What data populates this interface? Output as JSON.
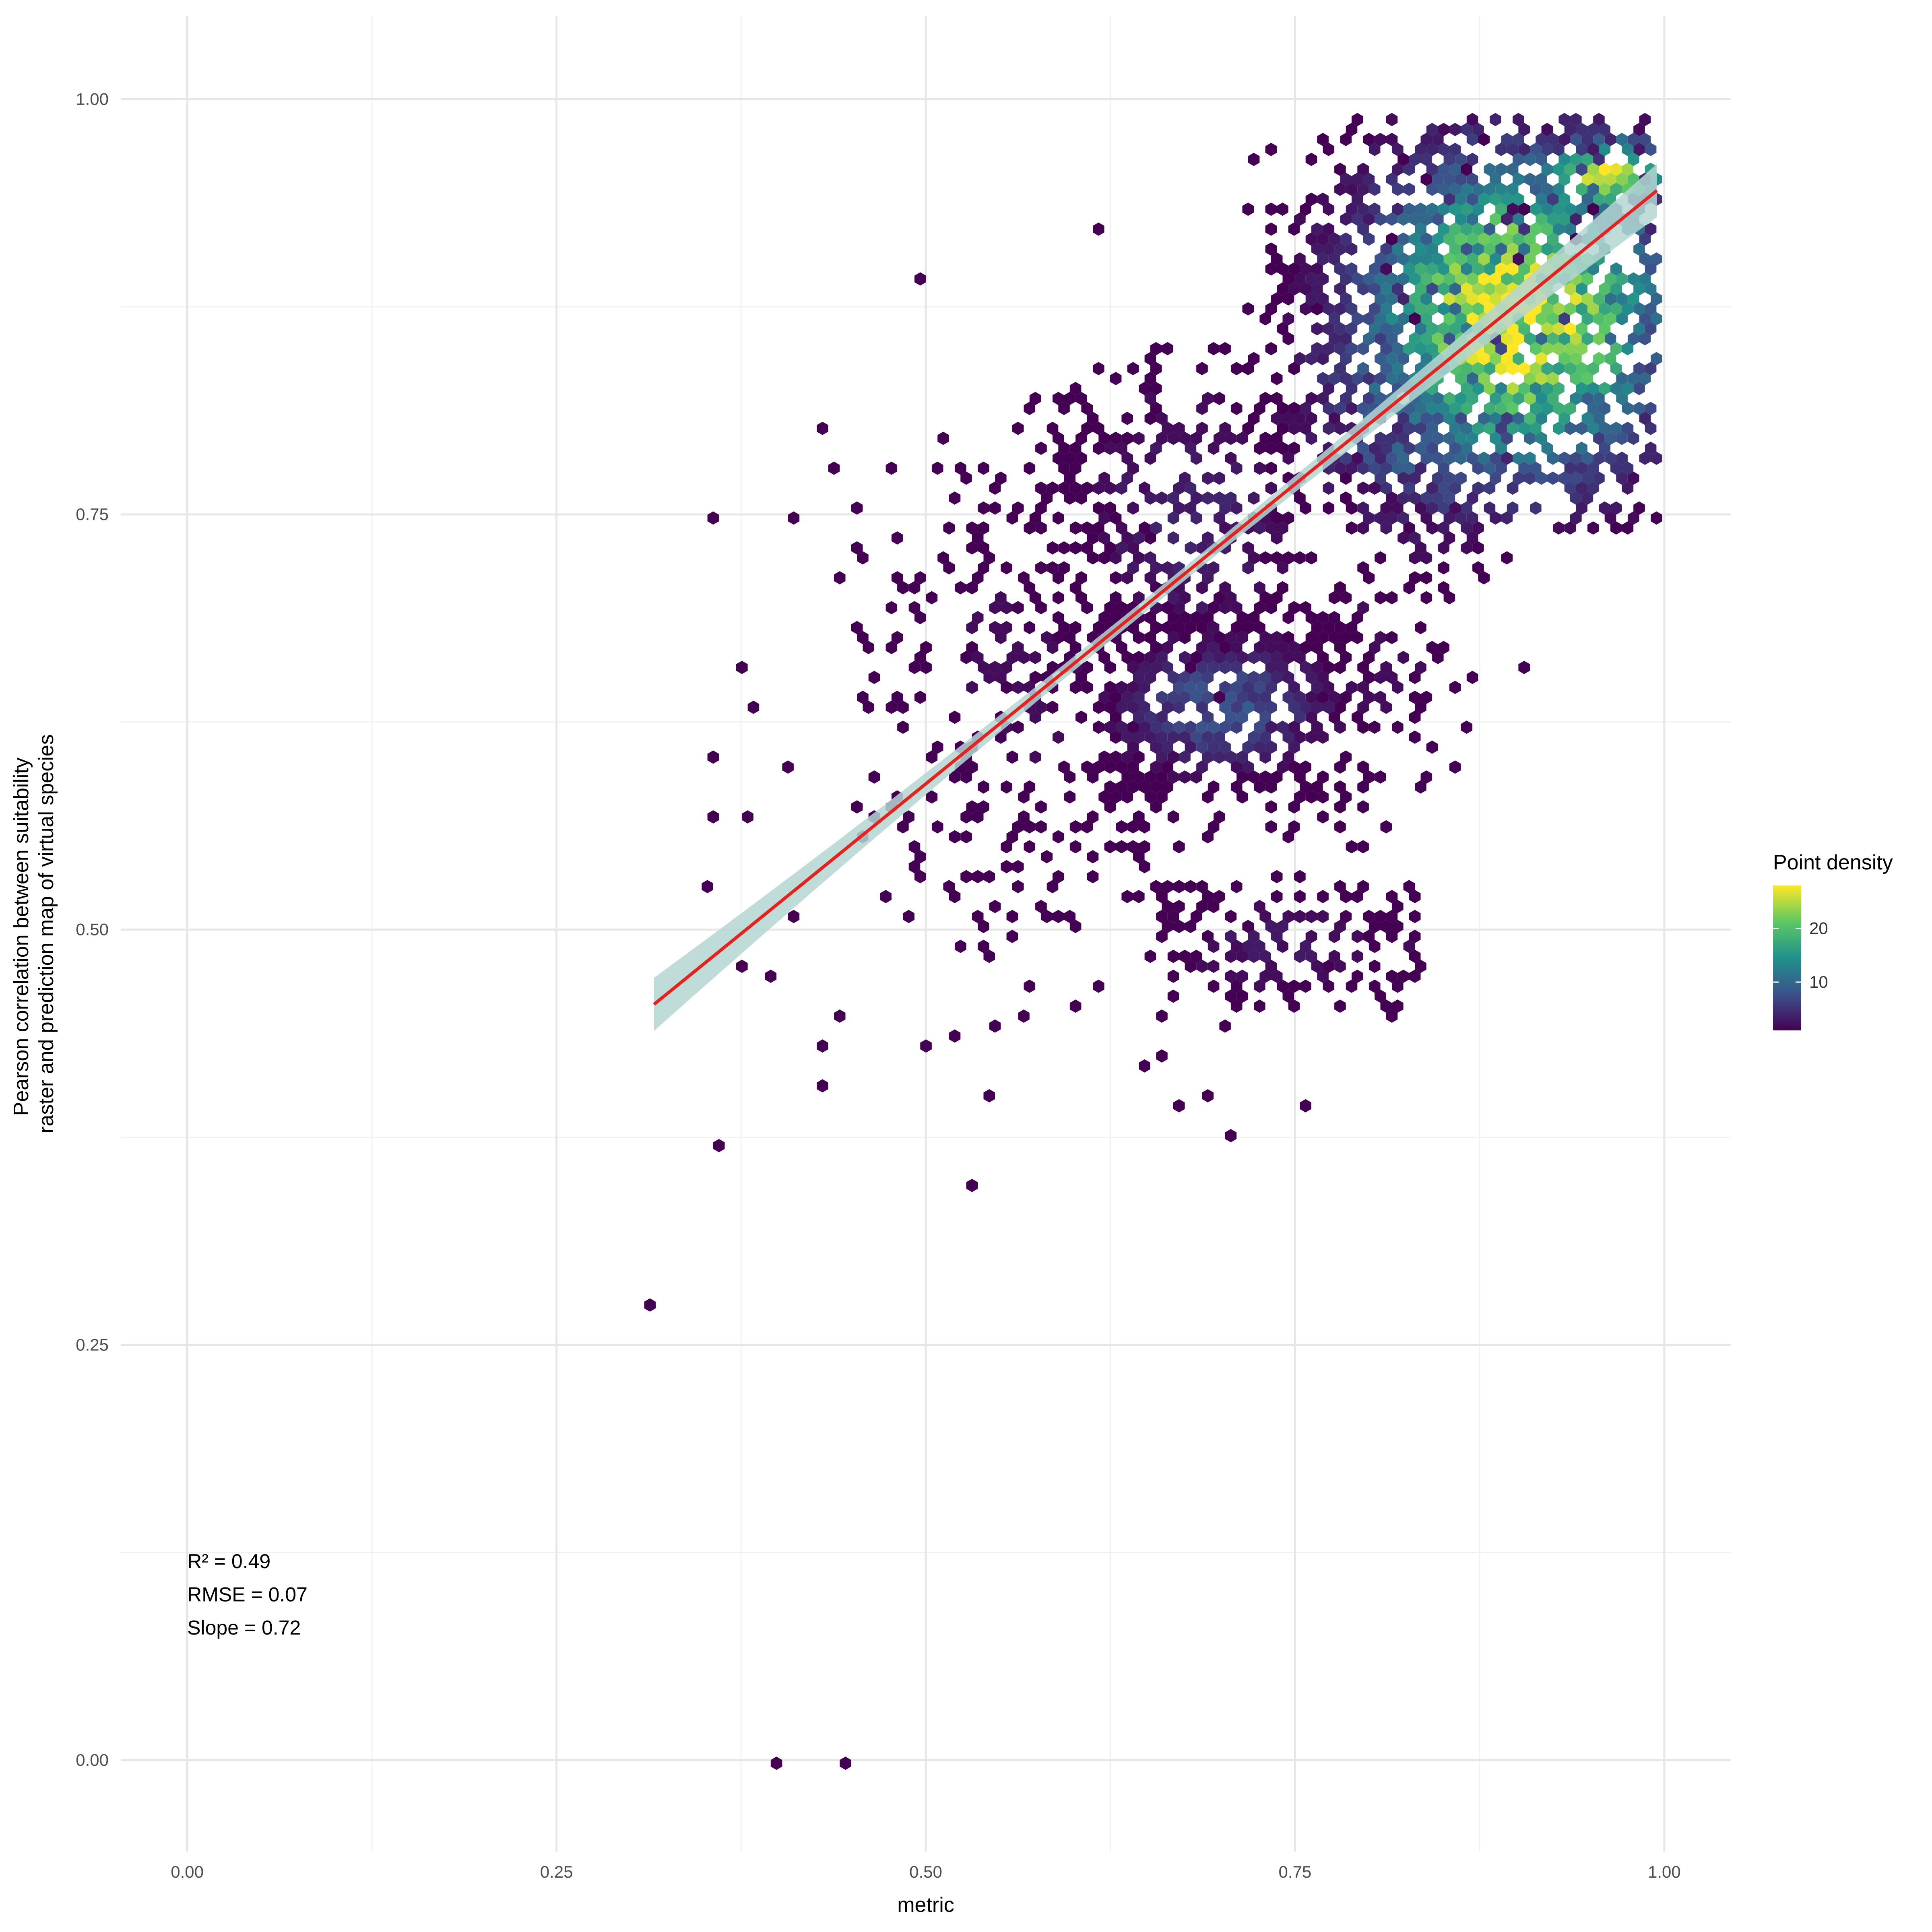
{
  "chart_data": {
    "type": "hexbin scatter with linear fit",
    "xlabel": "metric",
    "ylabel_lines": [
      "Pearson correlation between suitability",
      "raster and prediction map of virtual species"
    ],
    "xlim": [
      -0.045,
      1.045
    ],
    "ylim": [
      -0.055,
      1.05
    ],
    "x_ticks": [
      {
        "value": 0.0,
        "label": "0.00"
      },
      {
        "value": 0.25,
        "label": "0.25"
      },
      {
        "value": 0.5,
        "label": "0.50"
      },
      {
        "value": 0.75,
        "label": "0.75"
      },
      {
        "value": 1.0,
        "label": "1.00"
      }
    ],
    "y_ticks": [
      {
        "value": 0.0,
        "label": "0.00"
      },
      {
        "value": 0.25,
        "label": "0.25"
      },
      {
        "value": 0.5,
        "label": "0.50"
      },
      {
        "value": 0.75,
        "label": "0.75"
      },
      {
        "value": 1.0,
        "label": "1.00"
      }
    ],
    "grid": true,
    "legend": {
      "title": "Point density",
      "position": "right",
      "min": 1,
      "max": 28,
      "ticks": [
        {
          "value": 10,
          "label": "10"
        },
        {
          "value": 20,
          "label": "20"
        }
      ],
      "colors": [
        "#440154",
        "#3b528b",
        "#21908c",
        "#5dc863",
        "#fde725"
      ]
    },
    "fit": {
      "x0": 0.316,
      "y0": 0.455,
      "x1": 0.995,
      "y1": 0.945,
      "color": "#e8211c",
      "ribbon_color": "#b4d6d2"
    },
    "annotations": [
      "R² = 0.49",
      "RMSE = 0.07",
      "Slope = 0.72"
    ],
    "points_outlier": [
      [
        0.316,
        0.276
      ],
      [
        0.357,
        0.37
      ],
      [
        0.4,
        0.0
      ],
      [
        0.443,
        0.0
      ],
      [
        0.533,
        0.345
      ],
      [
        0.357,
        0.75
      ],
      [
        0.407,
        0.75
      ],
      [
        0.373,
        0.655
      ],
      [
        0.387,
        0.635
      ],
      [
        0.355,
        0.605
      ],
      [
        0.405,
        0.595
      ],
      [
        0.382,
        0.57
      ],
      [
        0.357,
        0.565
      ],
      [
        0.35,
        0.525
      ],
      [
        0.41,
        0.505
      ],
      [
        0.372,
        0.475
      ],
      [
        0.395,
        0.47
      ],
      [
        0.43,
        0.405
      ],
      [
        0.43,
        0.43
      ],
      [
        0.44,
        0.45
      ],
      [
        0.5,
        0.89
      ],
      [
        0.62,
        0.92
      ],
      [
        0.43,
        0.8
      ],
      [
        0.435,
        0.775
      ],
      [
        0.48,
        0.775
      ],
      [
        0.44,
        0.71
      ],
      [
        0.545,
        0.4
      ],
      [
        0.675,
        0.395
      ],
      [
        0.69,
        0.4
      ],
      [
        0.705,
        0.375
      ],
      [
        0.76,
        0.395
      ],
      [
        0.905,
        0.66
      ],
      [
        0.7,
        0.44
      ],
      [
        0.65,
        0.415
      ],
      [
        0.66,
        0.425
      ],
      [
        0.83,
        0.49
      ],
      [
        0.49,
        0.66
      ],
      [
        0.47,
        0.52
      ],
      [
        0.52,
        0.435
      ],
      [
        0.5,
        0.43
      ]
    ],
    "clusters": [
      {
        "x": [
          0.72,
          0.995
        ],
        "y": [
          0.74,
          0.99
        ],
        "cx": 0.9,
        "cy": 0.87,
        "sx": 0.065,
        "sy": 0.06,
        "count": 1700,
        "peak": 28
      },
      {
        "x": [
          0.74,
          0.9
        ],
        "y": [
          0.72,
          0.9
        ],
        "cx": 0.84,
        "cy": 0.82,
        "sx": 0.05,
        "sy": 0.05,
        "count": 500,
        "peak": 12
      },
      {
        "x": [
          0.62,
          0.8
        ],
        "y": [
          0.55,
          0.7
        ],
        "cx": 0.7,
        "cy": 0.635,
        "sx": 0.045,
        "sy": 0.025,
        "count": 550,
        "peak": 8
      },
      {
        "x": [
          0.55,
          0.75
        ],
        "y": [
          0.62,
          0.85
        ],
        "cx": 0.68,
        "cy": 0.75,
        "sx": 0.05,
        "sy": 0.05,
        "count": 420,
        "peak": 4
      },
      {
        "x": [
          0.45,
          0.65
        ],
        "y": [
          0.5,
          0.8
        ],
        "cx": 0.56,
        "cy": 0.65,
        "sx": 0.05,
        "sy": 0.07,
        "count": 320,
        "peak": 2
      },
      {
        "x": [
          0.64,
          0.84
        ],
        "y": [
          0.45,
          0.53
        ],
        "cx": 0.74,
        "cy": 0.49,
        "sx": 0.05,
        "sy": 0.02,
        "count": 220,
        "peak": 3
      },
      {
        "x": [
          0.5,
          0.68
        ],
        "y": [
          0.44,
          0.62
        ],
        "cx": 0.6,
        "cy": 0.55,
        "sx": 0.05,
        "sy": 0.05,
        "count": 90,
        "peak": 1
      },
      {
        "x": [
          0.76,
          0.88
        ],
        "y": [
          0.55,
          0.72
        ],
        "cx": 0.81,
        "cy": 0.66,
        "sx": 0.04,
        "sy": 0.04,
        "count": 120,
        "peak": 2
      }
    ]
  }
}
